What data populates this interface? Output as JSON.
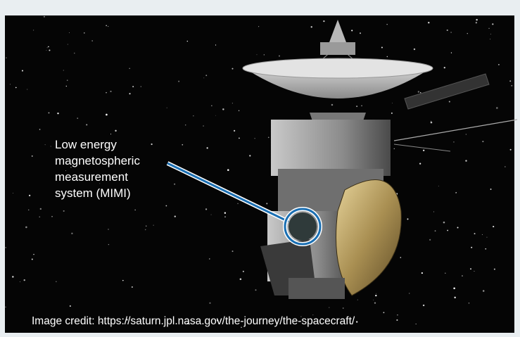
{
  "callout": {
    "lines": [
      "Low energy",
      "magnetospheric",
      "measurement",
      "system (MIMI)"
    ]
  },
  "credit": "Image credit: https://saturn.jpl.nasa.gov/the-journey/the-spacecraft/"
}
